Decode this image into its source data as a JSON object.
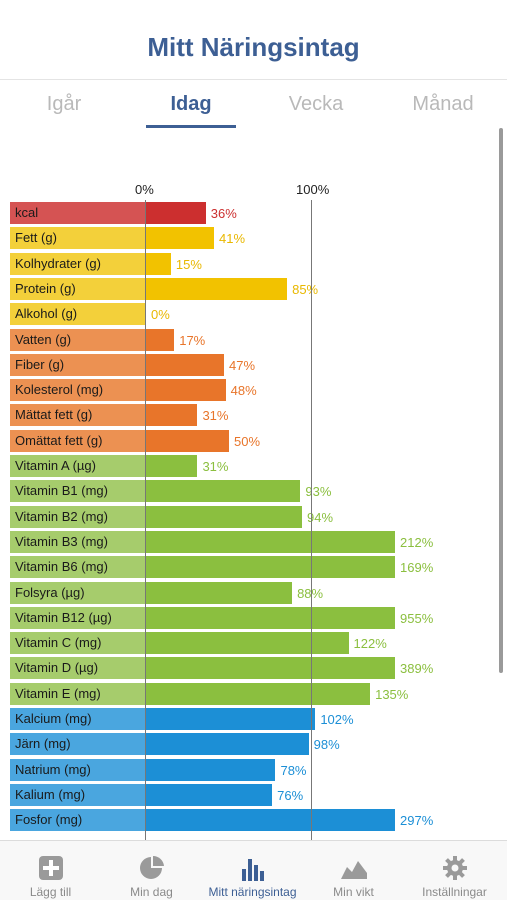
{
  "header": {
    "title": "Mitt Näringsintag"
  },
  "tabs": [
    {
      "label": "Igår",
      "active": false
    },
    {
      "label": "Idag",
      "active": true
    },
    {
      "label": "Vecka",
      "active": false
    },
    {
      "label": "Månad",
      "active": false
    }
  ],
  "chart_data": {
    "type": "bar",
    "orientation": "horizontal",
    "xlabel_ticks": [
      "0%",
      "100%"
    ],
    "unit": "percent of daily recommendation",
    "categories": [
      "kcal",
      "Fett (g)",
      "Kolhydrater (g)",
      "Protein (g)",
      "Alkohol (g)",
      "Vatten (g)",
      "Fiber (g)",
      "Kolesterol (mg)",
      "Mättat fett (g)",
      "Omättat fett (g)",
      "Vitamin A (µg)",
      "Vitamin B1 (mg)",
      "Vitamin B2 (mg)",
      "Vitamin B3 (mg)",
      "Vitamin B6 (mg)",
      "Folsyra (µg)",
      "Vitamin B12 (µg)",
      "Vitamin C (mg)",
      "Vitamin D (µg)",
      "Vitamin E (mg)",
      "Kalcium (mg)",
      "Järn (mg)",
      "Natrium (mg)",
      "Kalium (mg)",
      "Fosfor (mg)"
    ],
    "values": [
      36,
      41,
      15,
      85,
      0,
      17,
      47,
      48,
      31,
      50,
      31,
      93,
      94,
      212,
      169,
      88,
      955,
      122,
      389,
      135,
      102,
      98,
      78,
      76,
      297
    ],
    "value_labels": [
      "36%",
      "41%",
      "15%",
      "85%",
      "0%",
      "17%",
      "47%",
      "48%",
      "31%",
      "50%",
      "31%",
      "93%",
      "94%",
      "212%",
      "169%",
      "88%",
      "955%",
      "122%",
      "389%",
      "135%",
      "102%",
      "98%",
      "78%",
      "76%",
      "297%"
    ],
    "groups": [
      "red",
      "yellow",
      "yellow",
      "yellow",
      "yellow",
      "orange",
      "orange",
      "orange",
      "orange",
      "orange",
      "green",
      "green",
      "green",
      "green",
      "green",
      "green",
      "green",
      "green",
      "green",
      "green",
      "blue",
      "blue",
      "blue",
      "blue",
      "blue"
    ],
    "colors": {
      "red": {
        "bar": "#cc2f2f",
        "label_bg": "#d55353",
        "text": "#cc2f2f"
      },
      "yellow": {
        "bar": "#f2c200",
        "label_bg": "#f3d03a",
        "text": "#e9b800"
      },
      "orange": {
        "bar": "#e8752a",
        "label_bg": "#ec9152",
        "text": "#e8752a"
      },
      "green": {
        "bar": "#8bbf3f",
        "label_bg": "#a6cc6c",
        "text": "#8bbf3f"
      },
      "blue": {
        "bar": "#1c8fd6",
        "label_bg": "#4aa6df",
        "text": "#1c8fd6"
      }
    },
    "xlim_display_max_percent": 150
  },
  "bottom_nav": [
    {
      "label": "Lägg till",
      "icon": "plus-square-icon",
      "active": false
    },
    {
      "label": "Min dag",
      "icon": "pie-chart-icon",
      "active": false
    },
    {
      "label": "Mitt näringsintag",
      "icon": "bar-chart-icon",
      "active": true
    },
    {
      "label": "Min vikt",
      "icon": "mountain-chart-icon",
      "active": false
    },
    {
      "label": "Inställningar",
      "icon": "gear-icon",
      "active": false
    }
  ],
  "accent_color": "#3d5f94"
}
